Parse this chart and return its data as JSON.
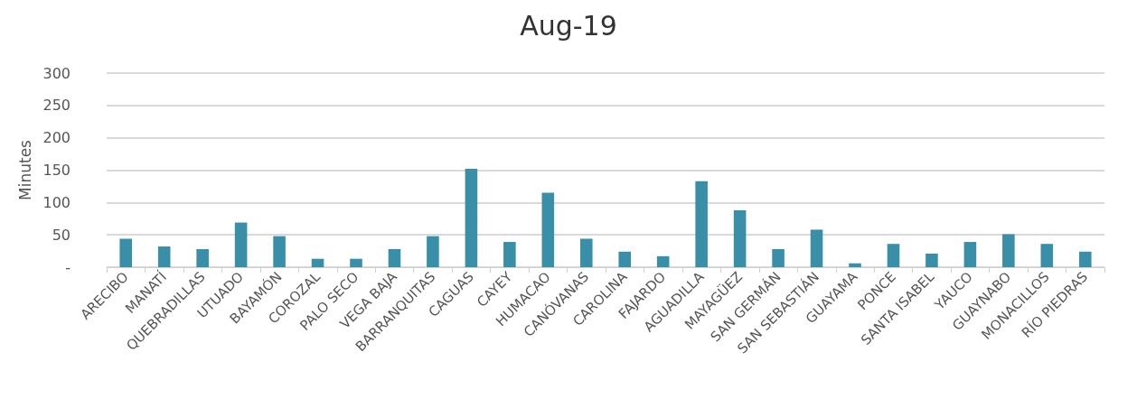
{
  "chart_data": {
    "type": "bar",
    "title": "Aug-19",
    "ylabel": "Minutes",
    "categories": [
      "ARECIBO",
      "MANATÍ",
      "QUEBRADILLAS",
      "UTUADO",
      "BAYAMÓN",
      "COROZAL",
      "PALO SECO",
      "VEGA BAJA",
      "BARRANQUITAS",
      "CAGUAS",
      "CAYEY",
      "HUMACAO",
      "CANÓVANAS",
      "CAROLINA",
      "FAJARDO",
      "AGUADILLA",
      "MAYAGÜEZ",
      "SAN GERMÁN",
      "SAN SEBASTIÁN",
      "GUAYAMA",
      "PONCE",
      "SANTA ISABEL",
      "YAUCO",
      "GUAYNABO",
      "MONACILLOS",
      "RÍO PIEDRAS"
    ],
    "values": [
      44,
      32,
      28,
      69,
      48,
      13,
      13,
      28,
      48,
      152,
      39,
      115,
      44,
      24,
      17,
      133,
      88,
      28,
      58,
      6,
      36,
      21,
      39,
      51,
      36,
      24
    ],
    "color": "#3a8fa8",
    "ylim": [
      0,
      300
    ],
    "yticks": [
      {
        "value": 0,
        "label": "-"
      },
      50,
      100,
      150,
      200,
      250,
      300
    ],
    "grid": "y"
  }
}
